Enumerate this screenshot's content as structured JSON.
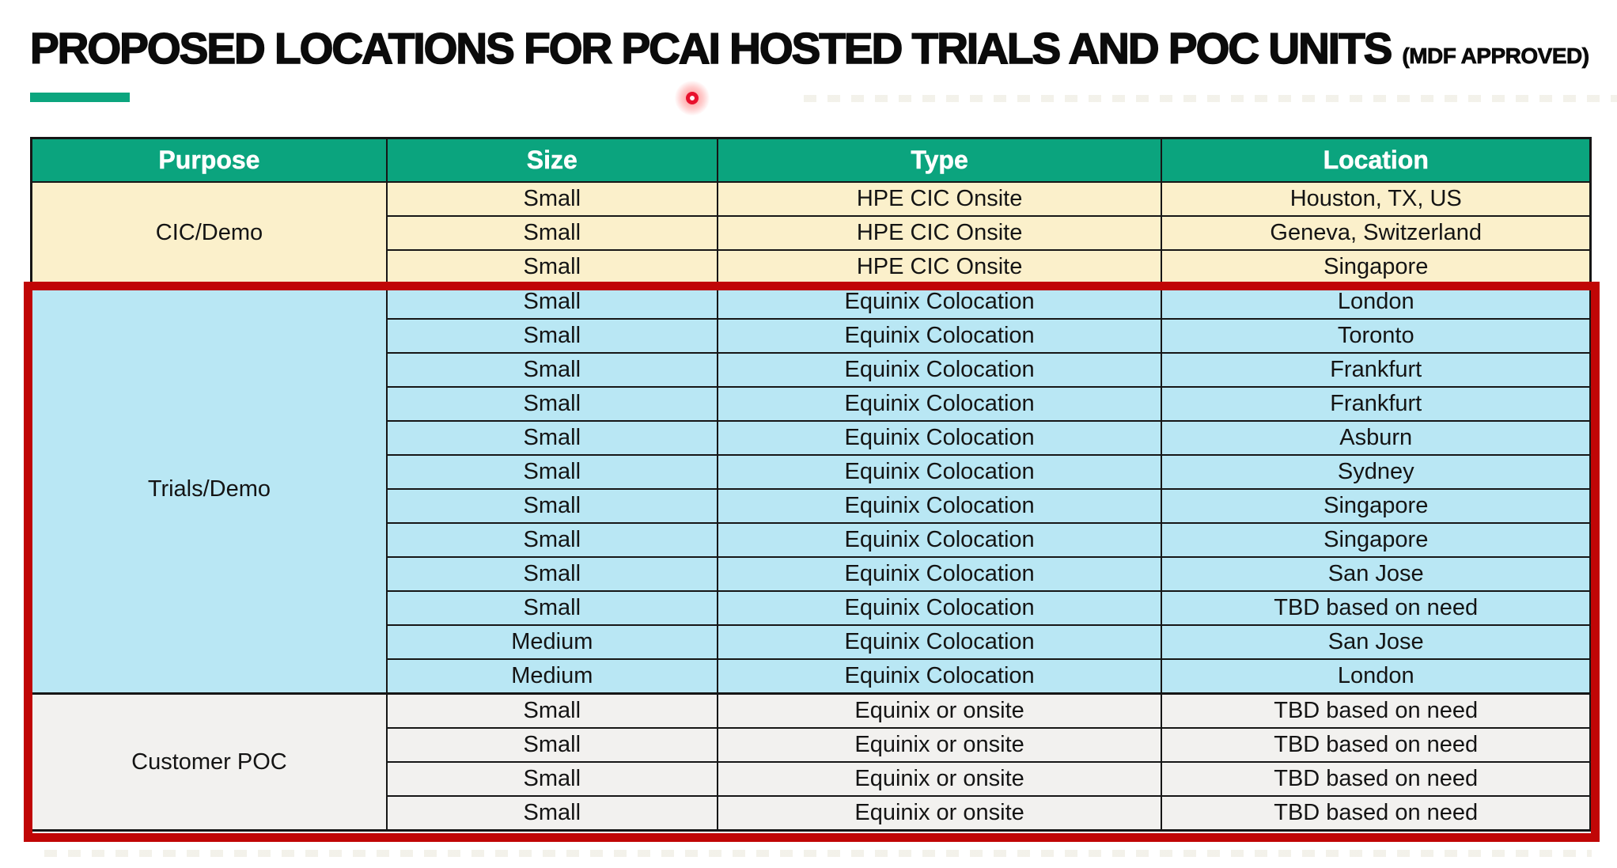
{
  "slide": {
    "title": "PROPOSED LOCATIONS FOR PCAI HOSTED TRIALS AND POC UNITS",
    "title_suffix": "(MDF APPROVED)"
  },
  "table": {
    "columns": [
      "Purpose",
      "Size",
      "Type",
      "Location"
    ],
    "header_bg": "#0ba47e",
    "header_text_color": "#ffffff",
    "sections": [
      {
        "purpose": "CIC/Demo",
        "bg": "#fbf0cb",
        "rows": [
          {
            "size": "Small",
            "type": "HPE CIC Onsite",
            "location": "Houston, TX, US"
          },
          {
            "size": "Small",
            "type": "HPE CIC Onsite",
            "location": "Geneva, Switzerland"
          },
          {
            "size": "Small",
            "type": "HPE CIC Onsite",
            "location": "Singapore"
          }
        ]
      },
      {
        "purpose": "Trials/Demo",
        "bg": "#b9e7f4",
        "rows": [
          {
            "size": "Small",
            "type": "Equinix Colocation",
            "location": "London"
          },
          {
            "size": "Small",
            "type": "Equinix Colocation",
            "location": "Toronto"
          },
          {
            "size": "Small",
            "type": "Equinix Colocation",
            "location": "Frankfurt"
          },
          {
            "size": "Small",
            "type": "Equinix Colocation",
            "location": "Frankfurt"
          },
          {
            "size": "Small",
            "type": "Equinix Colocation",
            "location": "Asburn"
          },
          {
            "size": "Small",
            "type": "Equinix Colocation",
            "location": "Sydney"
          },
          {
            "size": "Small",
            "type": "Equinix Colocation",
            "location": "Singapore"
          },
          {
            "size": "Small",
            "type": "Equinix Colocation",
            "location": "Singapore"
          },
          {
            "size": "Small",
            "type": "Equinix Colocation",
            "location": "San Jose"
          },
          {
            "size": "Small",
            "type": "Equinix Colocation",
            "location": "TBD based on need"
          },
          {
            "size": "Medium",
            "type": "Equinix Colocation",
            "location": "San Jose"
          },
          {
            "size": "Medium",
            "type": "Equinix Colocation",
            "location": "London"
          }
        ]
      },
      {
        "purpose": "Customer POC",
        "bg": "#f2f1ef",
        "rows": [
          {
            "size": "Small",
            "type": "Equinix or onsite",
            "location": "TBD based on need"
          },
          {
            "size": "Small",
            "type": "Equinix or onsite",
            "location": "TBD based on need"
          },
          {
            "size": "Small",
            "type": "Equinix or onsite",
            "location": "TBD based on need"
          },
          {
            "size": "Small",
            "type": "Equinix or onsite",
            "location": "TBD based on need"
          }
        ]
      }
    ]
  },
  "annotations": {
    "accent_green": "#0ca57e",
    "highlight_box_color": "#c00606",
    "laser_pointer_color": "#e8112d"
  }
}
